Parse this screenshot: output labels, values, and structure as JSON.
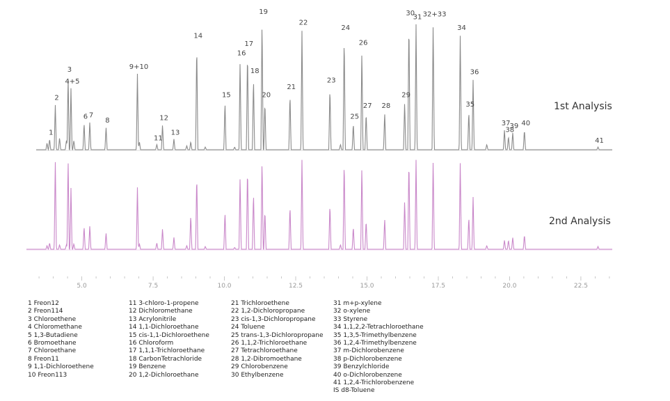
{
  "chart_data": {
    "type": "line",
    "title": "",
    "xlabel": "",
    "ylabel": "",
    "xlim": [
      3.4,
      23.6
    ],
    "x_ticks": [
      "5.0",
      "7.5",
      "10.0",
      "12.5",
      "15.0",
      "17.5",
      "20.0",
      "22.5"
    ],
    "x_tick_values": [
      5.0,
      7.5,
      10.0,
      12.5,
      15.0,
      17.5,
      20.0,
      22.5
    ],
    "colors": {
      "analysis1": "#8a8a8a",
      "analysis2": "#c987c9",
      "ticks": "#bbbbbb"
    },
    "series": [
      {
        "name": "1st Analysis"
      },
      {
        "name": "2nd Analysis"
      }
    ],
    "peaks": [
      {
        "label": "1",
        "rt": 3.87,
        "h1": 0.08,
        "h2": 0.07
      },
      {
        "label": "2",
        "rt": 4.07,
        "h1": 0.34,
        "h2": 0.97
      },
      {
        "label": "3",
        "rt": 4.52,
        "h1": 0.55,
        "h2": 0.99
      },
      {
        "label": "4+5",
        "rt": 4.62,
        "h1": 0.46,
        "h2": 0.67
      },
      {
        "label": "6",
        "rt": 5.08,
        "h1": 0.2,
        "h2": 0.25
      },
      {
        "label": "7",
        "rt": 5.28,
        "h1": 0.21,
        "h2": 0.26
      },
      {
        "label": "8",
        "rt": 5.85,
        "h1": 0.17,
        "h2": 0.18
      },
      {
        "label": "9+10",
        "rt": 6.95,
        "h1": 0.57,
        "h2": 0.68
      },
      {
        "label": "11",
        "rt": 7.63,
        "h1": 0.04,
        "h2": 0.07
      },
      {
        "label": "12",
        "rt": 7.83,
        "h1": 0.19,
        "h2": 0.23
      },
      {
        "label": "13",
        "rt": 8.23,
        "h1": 0.08,
        "h2": 0.13
      },
      {
        "label": "14",
        "rt": 9.03,
        "h1": 0.8,
        "h2": 0.82
      },
      {
        "label": "15",
        "rt": 10.02,
        "h1": 0.36,
        "h2": 0.41
      },
      {
        "label": "16",
        "rt": 10.55,
        "h1": 0.67,
        "h2": 0.8
      },
      {
        "label": "17",
        "rt": 10.81,
        "h1": 0.74,
        "h2": 0.9
      },
      {
        "label": "18",
        "rt": 11.02,
        "h1": 0.54,
        "h2": 0.62
      },
      {
        "label": "19",
        "rt": 11.32,
        "h1": 0.98,
        "h2": 0.99
      },
      {
        "label": "20",
        "rt": 11.42,
        "h1": 0.36,
        "h2": 0.43
      },
      {
        "label": "21",
        "rt": 12.3,
        "h1": 0.42,
        "h2": 0.48
      },
      {
        "label": "22",
        "rt": 12.72,
        "h1": 0.9,
        "h2": 0.99
      },
      {
        "label": "23",
        "rt": 13.7,
        "h1": 0.47,
        "h2": 0.5
      },
      {
        "label": "24",
        "rt": 14.2,
        "h1": 0.86,
        "h2": 0.98
      },
      {
        "label": "25",
        "rt": 14.52,
        "h1": 0.2,
        "h2": 0.25
      },
      {
        "label": "26",
        "rt": 14.82,
        "h1": 0.75,
        "h2": 0.92
      },
      {
        "label": "27",
        "rt": 14.97,
        "h1": 0.28,
        "h2": 0.32
      },
      {
        "label": "28",
        "rt": 15.62,
        "h1": 0.28,
        "h2": 0.34
      },
      {
        "label": "29",
        "rt": 16.32,
        "h1": 0.36,
        "h2": 0.54
      },
      {
        "label": "30",
        "rt": 16.47,
        "h1": 0.97,
        "h2": 0.99
      },
      {
        "label": "31",
        "rt": 16.72,
        "h1": 0.94,
        "h2": 0.98
      },
      {
        "label": "32+33",
        "rt": 17.32,
        "h1": 0.96,
        "h2": 0.99
      },
      {
        "label": "34",
        "rt": 18.27,
        "h1": 0.86,
        "h2": 0.95
      },
      {
        "label": "35",
        "rt": 18.57,
        "h1": 0.29,
        "h2": 0.36
      },
      {
        "label": "36",
        "rt": 18.72,
        "h1": 0.53,
        "h2": 0.58
      },
      {
        "label": "37",
        "rt": 19.82,
        "h1": 0.15,
        "h2": 0.1
      },
      {
        "label": "38",
        "rt": 19.96,
        "h1": 0.1,
        "h2": 0.1
      },
      {
        "label": "39",
        "rt": 20.11,
        "h1": 0.13,
        "h2": 0.13
      },
      {
        "label": "40",
        "rt": 20.52,
        "h1": 0.15,
        "h2": 0.16
      },
      {
        "label": "41",
        "rt": 23.1,
        "h1": 0.02,
        "h2": 0.03
      }
    ],
    "minor_peaks": [
      {
        "rt": 3.78,
        "h1": 0.05,
        "h2": 0.04
      },
      {
        "rt": 4.22,
        "h1": 0.09,
        "h2": 0.05
      },
      {
        "rt": 4.46,
        "h1": 0.07,
        "h2": 0.05
      },
      {
        "rt": 4.72,
        "h1": 0.07,
        "h2": 0.06
      },
      {
        "rt": 7.02,
        "h1": 0.06,
        "h2": 0.06
      },
      {
        "rt": 8.68,
        "h1": 0.03,
        "h2": 0.04
      },
      {
        "rt": 8.82,
        "h1": 0.06,
        "h2": 0.38
      },
      {
        "rt": 9.33,
        "h1": 0.02,
        "h2": 0.03
      },
      {
        "rt": 10.36,
        "h1": 0.02,
        "h2": 0.02
      },
      {
        "rt": 14.07,
        "h1": 0.04,
        "h2": 0.05
      },
      {
        "rt": 19.2,
        "h1": 0.04,
        "h2": 0.04
      }
    ]
  },
  "analysis_labels": {
    "first": "1st Analysis",
    "second": "2nd Analysis"
  },
  "legend": {
    "col1": [
      "1  Freon12",
      "2  Freon114",
      "3  Chloroethene",
      "4  Chloromethane",
      "5  1,3-Butadiene",
      "6  Bromoethane",
      "7  Chloroethane",
      "8  Freon11",
      "9  1,1-Dichloroethene",
      "10 Freon113"
    ],
    "col2": [
      "11 3-chloro-1-propene",
      "12 Dichloromethane",
      "13 Acrylonitrile",
      "14 1,1-Dichloroethane",
      "15 cis-1,1-Dichloroethene",
      "16 Chloroform",
      "17 1,1,1-Trichloroethane",
      "18 CarbonTetrachloride",
      "19 Benzene",
      "20 1,2-Dichloroethane"
    ],
    "col3": [
      "21 Trichloroethene",
      "22 1,2-Dichloropropane",
      "23 cis-1,3-Dichloropropane",
      "24 Toluene",
      "25 trans-1,3-Dichloropropane",
      "26 1,1,2-Trichloroethane",
      "27 Tetrachloroethane",
      "28 1,2-Dibromoethane",
      "29 Chlorobenzene",
      "30 Ethylbenzene"
    ],
    "col4": [
      "31 m+p-xylene",
      "32 o-xylene",
      "33 Styrene",
      "34 1,1,2,2-Tetrachloroethane",
      "35 1,3,5-Trimethylbenzene",
      "36 1,2,4-Trimethylbenzene",
      "37 m-Dichlorobenzene",
      "38 p-Dichlorobenzene",
      "39 Benzylchloride",
      "40 o-Dichlorobenzene",
      "41 1,2,4-Trichlorobenzene",
      "IS d8-Toluene"
    ]
  }
}
